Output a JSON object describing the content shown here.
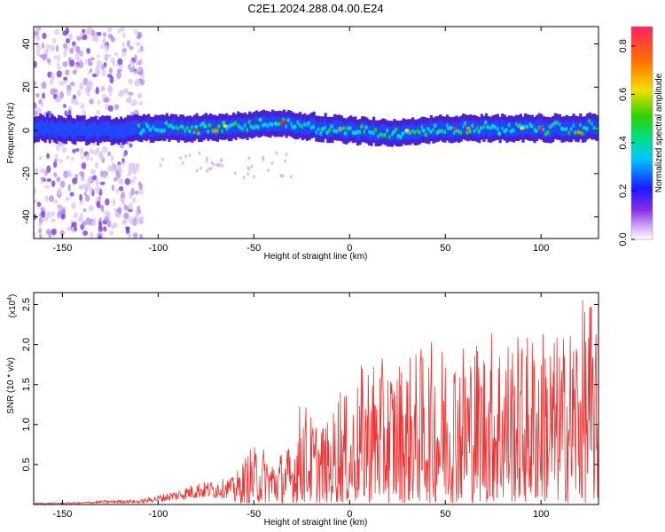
{
  "title": "C2E1.2024.288.04.00.E24",
  "chart_data": [
    {
      "type": "heatmap",
      "name": "spectrogram",
      "xlabel": "Height of straight line (km)",
      "ylabel": "Frequency (Hz)",
      "xlim": [
        -165,
        130
      ],
      "ylim": [
        -50,
        48
      ],
      "xticks": [
        -150,
        -100,
        -50,
        0,
        50,
        100
      ],
      "xtick_labels": [
        "-150",
        "-100",
        "-50",
        "0",
        "50",
        "100"
      ],
      "yticks": [
        -40,
        -20,
        0,
        20,
        40
      ],
      "ytick_labels": [
        "-40",
        "-20",
        "0",
        "20",
        "40"
      ],
      "band_center_hz": [
        [
          -160,
          1
        ],
        [
          -140,
          0
        ],
        [
          -120,
          0
        ],
        [
          -100,
          1
        ],
        [
          -80,
          1
        ],
        [
          -60,
          2
        ],
        [
          -40,
          3
        ],
        [
          -20,
          2
        ],
        [
          0,
          0
        ],
        [
          20,
          -1
        ],
        [
          40,
          0
        ],
        [
          60,
          1
        ],
        [
          80,
          1
        ],
        [
          100,
          1
        ],
        [
          120,
          1
        ],
        [
          130,
          2
        ]
      ],
      "band_halfwidth_hz": 6,
      "scatter_region_km": [
        -165,
        -108
      ],
      "peak_amplitude_points": [
        [
          -80,
          0
        ],
        [
          -70,
          0
        ],
        [
          -65,
          2
        ],
        [
          -35,
          4
        ],
        [
          -5,
          1
        ],
        [
          30,
          0
        ],
        [
          55,
          1
        ],
        [
          62,
          1
        ],
        [
          90,
          1
        ],
        [
          100,
          1
        ],
        [
          120,
          -1
        ]
      ],
      "colorbar": {
        "label": "Normalized spectral amplitude",
        "range": [
          0.0,
          0.88
        ],
        "ticks": [
          0.0,
          0.2,
          0.4,
          0.6,
          0.8
        ],
        "tick_labels": [
          "0.0",
          "0.2",
          "0.4",
          "0.6",
          "0.8"
        ],
        "colormap": "rainbow"
      }
    },
    {
      "type": "line",
      "name": "snr",
      "xlabel": "Height of straight line (km)",
      "ylabel": "SNR (10 * v/v)",
      "y_multiplier_label": "(x10",
      "y_multiplier_exponent": "4",
      "xlim": [
        -165,
        130
      ],
      "ylim": [
        0,
        2.65
      ],
      "xticks": [
        -150,
        -100,
        -50,
        0,
        50,
        100
      ],
      "xtick_labels": [
        "-150",
        "-100",
        "-50",
        "0",
        "50",
        "100"
      ],
      "yticks": [
        0.5,
        1.0,
        1.5,
        2.0,
        2.5
      ],
      "ytick_labels": [
        "0.5",
        "1.0",
        "1.5",
        "2.0",
        "2.5"
      ],
      "color": "#ee3333",
      "envelope_points": [
        [
          -165,
          0.02
        ],
        [
          -140,
          0.03
        ],
        [
          -130,
          0.05
        ],
        [
          -120,
          0.06
        ],
        [
          -110,
          0.06
        ],
        [
          -100,
          0.12
        ],
        [
          -90,
          0.18
        ],
        [
          -80,
          0.28
        ],
        [
          -70,
          0.3
        ],
        [
          -60,
          0.35
        ],
        [
          -52,
          0.7
        ],
        [
          -45,
          0.72
        ],
        [
          -40,
          0.6
        ],
        [
          -30,
          0.75
        ],
        [
          -25,
          1.4
        ],
        [
          -20,
          1.1
        ],
        [
          -10,
          1.0
        ],
        [
          -5,
          1.6
        ],
        [
          0,
          1.2
        ],
        [
          8,
          1.9
        ],
        [
          18,
          1.8
        ],
        [
          30,
          1.85
        ],
        [
          40,
          2.0
        ],
        [
          50,
          2.05
        ],
        [
          60,
          2.1
        ],
        [
          70,
          2.1
        ],
        [
          75,
          2.25
        ],
        [
          80,
          2.2
        ],
        [
          90,
          2.1
        ],
        [
          100,
          2.25
        ],
        [
          110,
          2.1
        ],
        [
          120,
          2.5
        ],
        [
          126,
          2.65
        ],
        [
          130,
          1.9
        ]
      ]
    }
  ]
}
